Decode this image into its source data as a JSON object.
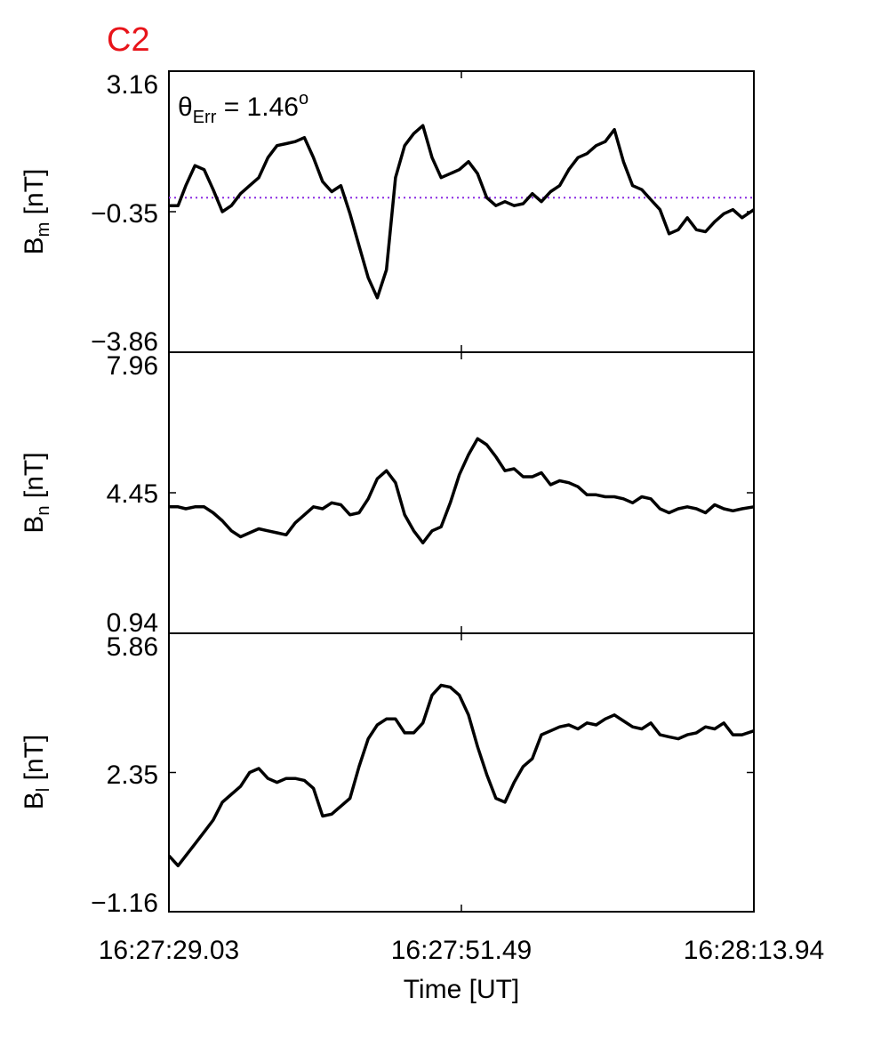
{
  "figure_title": "C2",
  "colors": {
    "title": "#e8141a",
    "trace": "#000000",
    "reference_line": "#8a2be2",
    "axes": "#000000"
  },
  "annotation": {
    "theta": "θ",
    "subscript": "Err",
    "equals_value": " =  1.46",
    "superscript": "o"
  },
  "xaxis": {
    "label": "Time [UT]",
    "tick_labels": [
      "16:27:29.03",
      "16:27:51.49",
      "16:28:13.94"
    ]
  },
  "panels": [
    {
      "id": "bm",
      "ylabel_main": "B",
      "ylabel_sub": "m",
      "ylabel_unit": " [nT]",
      "tick_labels": [
        "3.16",
        "−0.35",
        "−3.86"
      ]
    },
    {
      "id": "bn",
      "ylabel_main": "B",
      "ylabel_sub": "n",
      "ylabel_unit": " [nT]",
      "tick_labels": [
        "7.96",
        "4.45",
        "0.94"
      ]
    },
    {
      "id": "bl",
      "ylabel_main": "B",
      "ylabel_sub": "l",
      "ylabel_unit": " [nT]",
      "tick_labels": [
        "5.86",
        "2.35",
        "−1.16"
      ]
    }
  ],
  "chart_data": {
    "type": "line",
    "x_unit": "seconds after 16:27:29.03",
    "xlim": [
      0,
      44.91
    ],
    "panels": [
      {
        "name": "Bm [nT]",
        "ylim": [
          -3.86,
          3.16
        ],
        "yticks": [
          3.16,
          -0.35,
          -3.86
        ],
        "reference_line": 0.0,
        "x": [
          0,
          0.7,
          1.3,
          2.0,
          2.7,
          3.4,
          4.1,
          4.8,
          5.5,
          6.2,
          6.9,
          7.6,
          8.3,
          9.0,
          9.7,
          10.4,
          11.1,
          11.8,
          12.5,
          13.2,
          13.9,
          14.6,
          15.3,
          16.0,
          16.7,
          17.4,
          18.1,
          18.8,
          19.5,
          20.2,
          20.9,
          21.6,
          22.3,
          23.0,
          23.7,
          24.4,
          25.1,
          25.8,
          26.5,
          27.2,
          27.9,
          28.6,
          29.3,
          30.0,
          30.7,
          31.4,
          32.1,
          32.8,
          33.5,
          34.2,
          34.9,
          35.6,
          36.3,
          37.0,
          37.7,
          38.4,
          39.1,
          39.8,
          40.5,
          41.2,
          41.9,
          42.6,
          43.3,
          44.0,
          44.91
        ],
        "y": [
          -0.2,
          -0.2,
          0.3,
          0.8,
          0.7,
          0.2,
          -0.35,
          -0.2,
          0.1,
          0.3,
          0.5,
          1.0,
          1.3,
          1.35,
          1.4,
          1.5,
          1.0,
          0.4,
          0.15,
          0.3,
          -0.4,
          -1.2,
          -2.0,
          -2.5,
          -1.8,
          0.5,
          1.3,
          1.6,
          1.8,
          1.0,
          0.5,
          0.6,
          0.7,
          0.9,
          0.6,
          0.0,
          -0.2,
          -0.1,
          -0.2,
          -0.15,
          0.1,
          -0.1,
          0.15,
          0.3,
          0.7,
          1.0,
          1.1,
          1.3,
          1.4,
          1.7,
          0.9,
          0.3,
          0.2,
          -0.05,
          -0.3,
          -0.9,
          -0.8,
          -0.5,
          -0.8,
          -0.85,
          -0.6,
          -0.4,
          -0.3,
          -0.5,
          -0.3
        ]
      },
      {
        "name": "Bn [nT]",
        "ylim": [
          0.94,
          7.96
        ],
        "yticks": [
          7.96,
          4.45,
          0.94
        ],
        "x": [
          0,
          0.7,
          1.3,
          2.0,
          2.7,
          3.4,
          4.1,
          4.8,
          5.5,
          6.2,
          6.9,
          7.6,
          8.3,
          9.0,
          9.7,
          10.4,
          11.1,
          11.8,
          12.5,
          13.2,
          13.9,
          14.6,
          15.3,
          16.0,
          16.7,
          17.4,
          18.1,
          18.8,
          19.5,
          20.2,
          20.9,
          21.6,
          22.3,
          23.0,
          23.7,
          24.4,
          25.1,
          25.8,
          26.5,
          27.2,
          27.9,
          28.6,
          29.3,
          30.0,
          30.7,
          31.4,
          32.1,
          32.8,
          33.5,
          34.2,
          34.9,
          35.6,
          36.3,
          37.0,
          37.7,
          38.4,
          39.1,
          39.8,
          40.5,
          41.2,
          41.9,
          42.6,
          43.3,
          44.0,
          44.91
        ],
        "y": [
          4.1,
          4.1,
          4.05,
          4.1,
          4.1,
          3.95,
          3.75,
          3.5,
          3.35,
          3.45,
          3.55,
          3.5,
          3.45,
          3.4,
          3.7,
          3.9,
          4.1,
          4.05,
          4.2,
          4.15,
          3.9,
          3.95,
          4.3,
          4.8,
          5.0,
          4.7,
          3.9,
          3.5,
          3.2,
          3.5,
          3.6,
          4.2,
          4.9,
          5.4,
          5.8,
          5.65,
          5.35,
          5.0,
          5.05,
          4.85,
          4.85,
          4.95,
          4.65,
          4.75,
          4.7,
          4.6,
          4.4,
          4.4,
          4.35,
          4.35,
          4.3,
          4.2,
          4.35,
          4.3,
          4.05,
          3.95,
          4.05,
          4.1,
          4.05,
          3.95,
          4.15,
          4.05,
          4.0,
          4.05,
          4.1
        ]
      },
      {
        "name": "Bl [nT]",
        "ylim": [
          -1.16,
          5.86
        ],
        "yticks": [
          5.86,
          2.35,
          -1.16
        ],
        "x": [
          0,
          0.7,
          1.3,
          2.0,
          2.7,
          3.4,
          4.1,
          4.8,
          5.5,
          6.2,
          6.9,
          7.6,
          8.3,
          9.0,
          9.7,
          10.4,
          11.1,
          11.8,
          12.5,
          13.2,
          13.9,
          14.6,
          15.3,
          16.0,
          16.7,
          17.4,
          18.1,
          18.8,
          19.5,
          20.2,
          20.9,
          21.6,
          22.3,
          23.0,
          23.7,
          24.4,
          25.1,
          25.8,
          26.5,
          27.2,
          27.9,
          28.6,
          29.3,
          30.0,
          30.7,
          31.4,
          32.1,
          32.8,
          33.5,
          34.2,
          34.9,
          35.6,
          36.3,
          37.0,
          37.7,
          38.4,
          39.1,
          39.8,
          40.5,
          41.2,
          41.9,
          42.6,
          43.3,
          44.0,
          44.91
        ],
        "y": [
          0.25,
          0.0,
          0.25,
          0.55,
          0.85,
          1.15,
          1.6,
          1.8,
          2.0,
          2.35,
          2.45,
          2.2,
          2.1,
          2.2,
          2.2,
          2.15,
          1.95,
          1.25,
          1.3,
          1.5,
          1.7,
          2.5,
          3.2,
          3.55,
          3.7,
          3.7,
          3.35,
          3.35,
          3.6,
          4.3,
          4.55,
          4.5,
          4.3,
          3.8,
          3.0,
          2.3,
          1.7,
          1.6,
          2.1,
          2.5,
          2.7,
          3.3,
          3.4,
          3.5,
          3.55,
          3.45,
          3.6,
          3.55,
          3.7,
          3.8,
          3.65,
          3.5,
          3.45,
          3.6,
          3.3,
          3.25,
          3.2,
          3.3,
          3.35,
          3.5,
          3.45,
          3.6,
          3.3,
          3.3,
          3.4
        ]
      }
    ]
  }
}
